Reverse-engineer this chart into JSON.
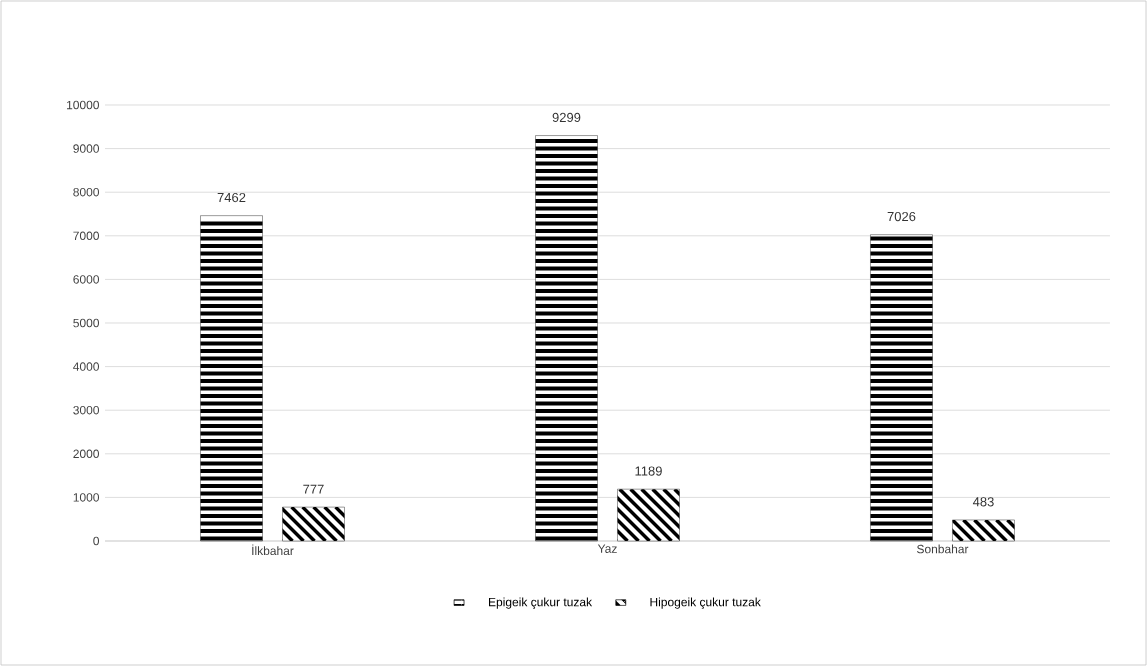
{
  "chart_data": {
    "type": "bar",
    "categories": [
      "İlkbahar",
      "Yaz",
      "Sonbahar"
    ],
    "series": [
      {
        "name": "Epigeik çukur tuzak",
        "color": "#000000",
        "values": [
          7462,
          9299,
          7026
        ]
      },
      {
        "name": "Hipogeik çukur tuzak",
        "color": "#000000",
        "values": [
          777,
          1189,
          483
        ]
      }
    ],
    "ylim": [
      0,
      10000
    ],
    "yticks": [
      0,
      1000,
      2000,
      3000,
      4000,
      5000,
      6000,
      7000,
      8000,
      9000,
      10000
    ],
    "grid": "y",
    "legend": "bottom",
    "data_labels": true
  }
}
